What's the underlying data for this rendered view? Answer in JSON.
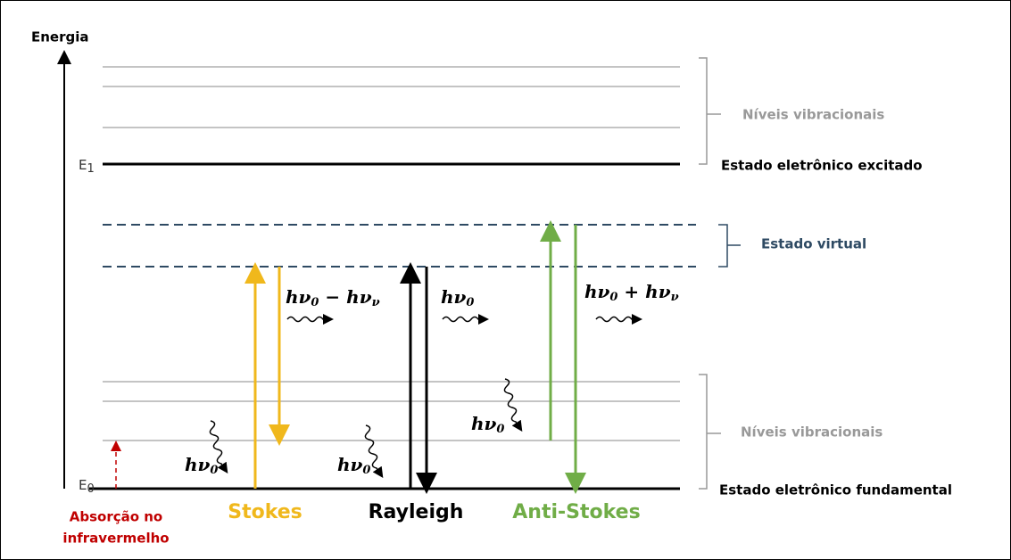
{
  "energy_axis": "Energia",
  "levels": [
    {
      "symbol": "E",
      "sub": "1",
      "label": "Estado eletrônico excitado"
    },
    {
      "symbol": "E",
      "sub": "0",
      "label": "Estado eletrônico fundamental"
    }
  ],
  "brackets": [
    "Níveis vibracionais",
    "Estado virtual",
    "Níveis vibracionais"
  ],
  "processes": [
    {
      "name": [
        "Absorção no",
        "infravermelho"
      ]
    },
    {
      "name": "Stokes",
      "absorbed": [
        {
          "t": "hν",
          "sub": "0"
        }
      ],
      "emitted": [
        {
          "t": "hν",
          "sub": "0"
        },
        {
          "t": " − hν",
          "sub": "ν"
        }
      ]
    },
    {
      "name": "Rayleigh",
      "absorbed": [
        {
          "t": "hν",
          "sub": "0"
        }
      ],
      "emitted": [
        {
          "t": "hν",
          "sub": "0"
        }
      ]
    },
    {
      "name": "Anti-Stokes",
      "absorbed": [
        {
          "t": "hν",
          "sub": "0"
        }
      ],
      "emitted": [
        {
          "t": "hν",
          "sub": "0"
        },
        {
          "t": " + hν",
          "sub": "ν"
        }
      ]
    }
  ]
}
